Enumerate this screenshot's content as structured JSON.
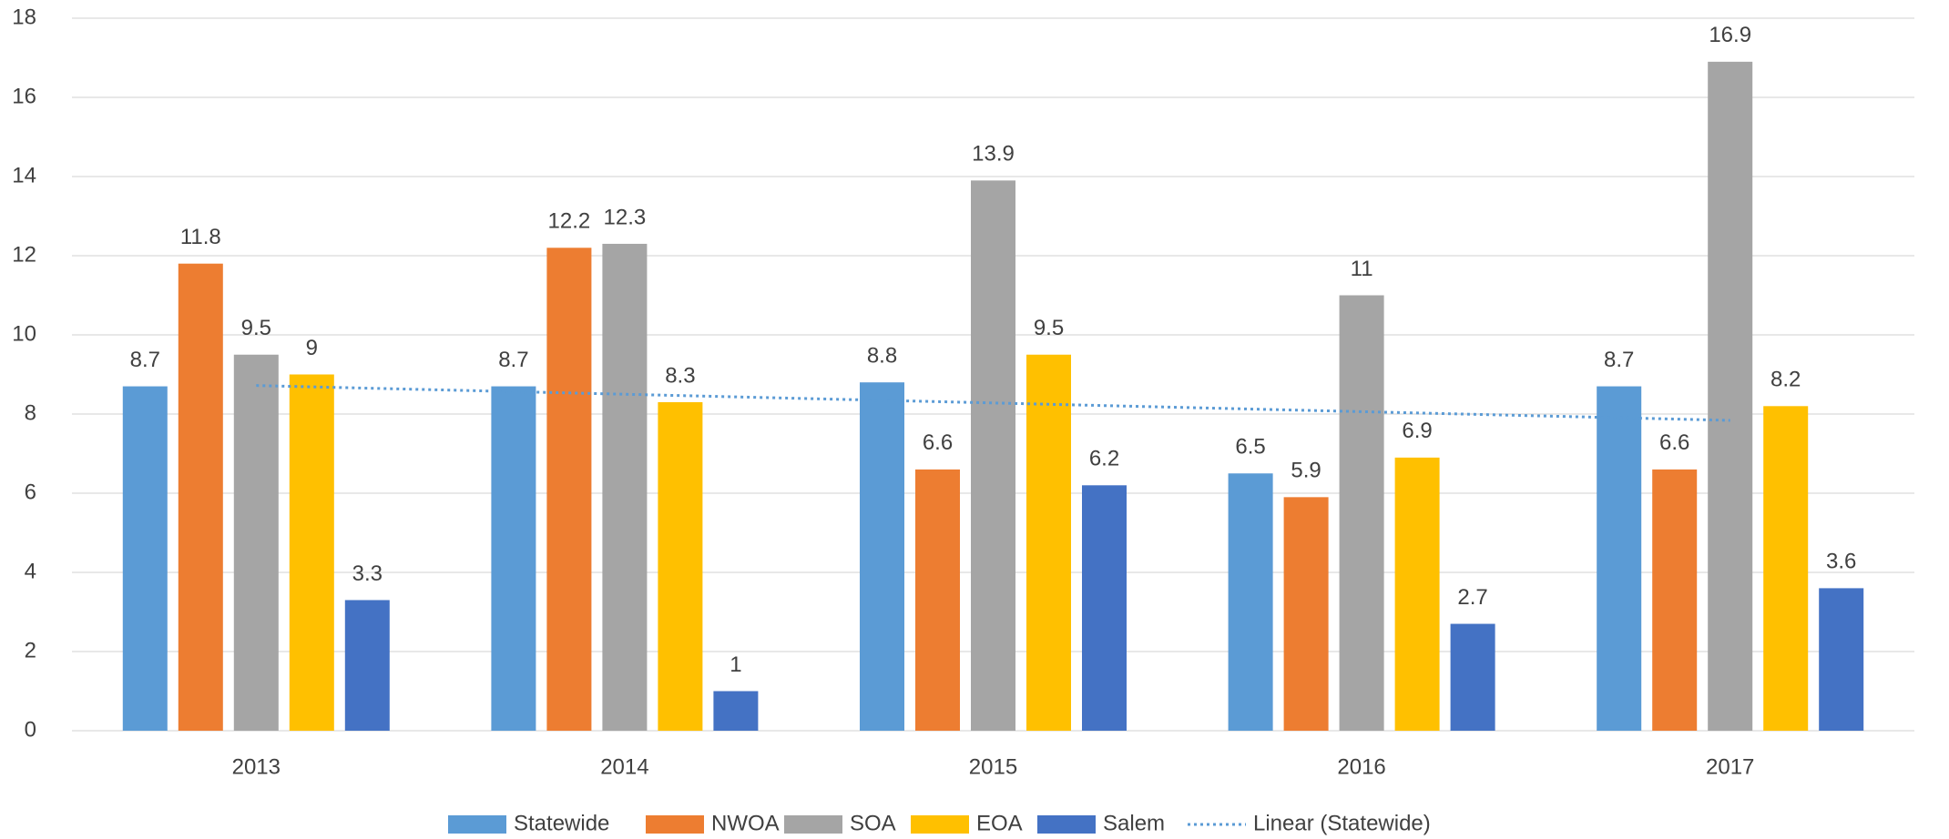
{
  "chart_data": {
    "type": "bar",
    "categories": [
      "2013",
      "2014",
      "2015",
      "2016",
      "2017"
    ],
    "series": [
      {
        "name": "Statewide",
        "color": "#5b9bd5",
        "values": [
          8.7,
          8.7,
          8.8,
          6.5,
          8.7
        ]
      },
      {
        "name": "NWOA",
        "color": "#ed7d31",
        "values": [
          11.8,
          12.2,
          6.6,
          5.9,
          6.6
        ]
      },
      {
        "name": "SOA",
        "color": "#a5a5a5",
        "values": [
          9.5,
          12.3,
          13.9,
          11,
          16.9
        ]
      },
      {
        "name": "EOA",
        "color": "#ffc000",
        "values": [
          9,
          8.3,
          9.5,
          6.9,
          8.2
        ]
      },
      {
        "name": "Salem",
        "color": "#4472c4",
        "values": [
          3.3,
          1,
          6.2,
          2.7,
          3.6
        ]
      }
    ],
    "trendline": {
      "name": "Linear (Statewide)",
      "series": 0,
      "type": "linear",
      "color": "#5b9bd5"
    },
    "ylim": [
      0,
      18
    ],
    "yticks": [
      0,
      2,
      4,
      6,
      8,
      10,
      12,
      14,
      16,
      18
    ],
    "grid": true,
    "legend": "bottom"
  }
}
